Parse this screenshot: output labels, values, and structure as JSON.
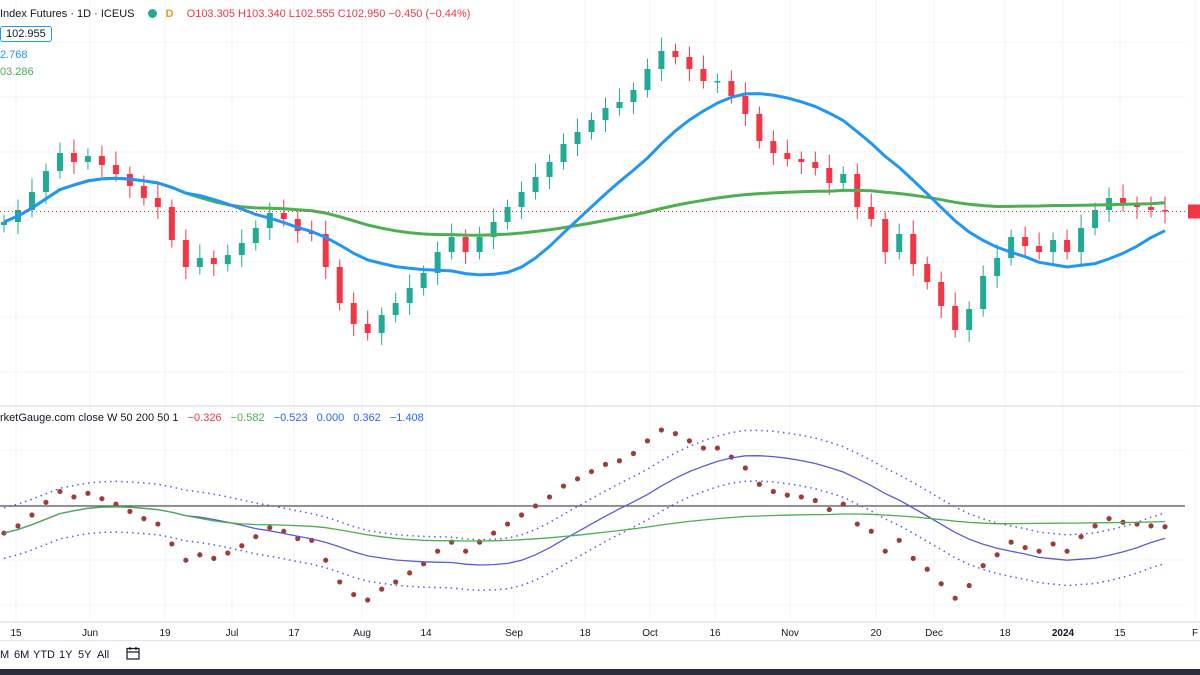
{
  "header": {
    "symbol": "Index Futures · 1D · ICEUS",
    "interval_badge": "D",
    "ohlc": "O103.305 H103.340 L102.555 C102.950 −0.450 (−0.44%)",
    "price_box": "102.955",
    "ma50_value": "2.768",
    "ma200_value": "03.286",
    "ma50_color": "#2196f3",
    "ma200_color": "#4caf50"
  },
  "indicator": {
    "name": "rketGauge.com close W 50 200 50 1",
    "values": [
      "−0.326",
      "−0.582",
      "−0.523",
      "0.000",
      "0.362",
      "−1.408"
    ]
  },
  "xaxis": {
    "labels": [
      "15",
      "Jun",
      "19",
      "Jul",
      "17",
      "Aug",
      "14",
      "Sep",
      "18",
      "Oct",
      "16",
      "Nov",
      "20",
      "Dec",
      "18",
      "2024",
      "15",
      "F"
    ]
  },
  "range_buttons": [
    "M",
    "6M",
    "YTD",
    "1Y",
    "5Y",
    "All"
  ],
  "colors": {
    "up": "#22ab94",
    "down": "#f23645",
    "ma50": "#2196f3",
    "ma200": "#4caf50",
    "dots": "#9c3c3c",
    "osc_line": "#5b5bd6",
    "osc_green": "#4caf50",
    "band": "#5b5bd6"
  },
  "chart_data": [
    {
      "type": "candlestick",
      "title": "Index Futures · 1D · ICEUS",
      "series": [
        {
          "name": "candles",
          "start_close": 102.5,
          "close_path": [
            102.6,
            103.0,
            103.6,
            104.3,
            104.9,
            104.6,
            104.8,
            104.5,
            104.2,
            103.8,
            103.4,
            103.1,
            102.0,
            101.1,
            101.4,
            101.2,
            101.5,
            101.9,
            102.4,
            102.9,
            102.7,
            102.3,
            102.2,
            101.1,
            99.9,
            99.2,
            98.9,
            99.5,
            99.9,
            100.4,
            100.9,
            101.6,
            102.1,
            101.6,
            102.1,
            102.6,
            103.1,
            103.6,
            104.1,
            104.6,
            105.2,
            105.6,
            106.0,
            106.4,
            106.6,
            107.0,
            107.7,
            108.3,
            108.1,
            107.7,
            107.3,
            107.3,
            106.8,
            106.2,
            105.3,
            104.9,
            104.7,
            104.6,
            104.4,
            103.9,
            104.2,
            103.1,
            102.7,
            101.6,
            102.2,
            101.2,
            100.6,
            99.8,
            99.0,
            99.7,
            100.8,
            101.4,
            102.1,
            101.8,
            101.6,
            102.0,
            101.6,
            102.4,
            103.0,
            103.4,
            103.2,
            103.1,
            103.0,
            102.95
          ]
        }
      ],
      "ylim": [
        97.5,
        109.0
      ]
    },
    {
      "type": "line",
      "title": "rketGauge.com close W 50 200 50 1",
      "series": [
        {
          "name": "indicator",
          "values": [
            -0.326,
            -0.582,
            -0.523,
            0.0,
            0.362,
            -1.408
          ]
        }
      ]
    }
  ]
}
